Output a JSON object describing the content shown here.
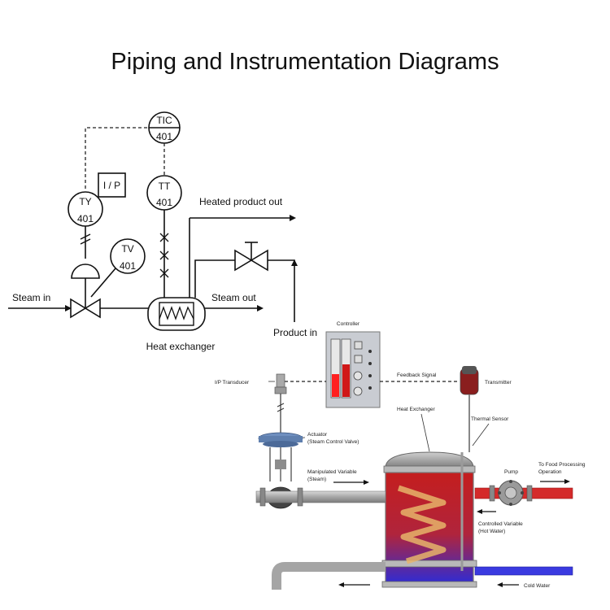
{
  "title": "Piping and Instrumentation Diagrams",
  "pid": {
    "tic_letters": "TIC",
    "tic_number": "401",
    "ty_letters": "TY",
    "ty_number": "401",
    "tt_letters": "TT",
    "tt_number": "401",
    "tv_letters": "TV",
    "tv_number": "401",
    "ip_box": "I / P",
    "steam_in": "Steam in",
    "steam_out": "Steam out",
    "heated_product_out": "Heated product out",
    "product_in": "Product in",
    "heat_exchanger": "Heat exchanger"
  },
  "illustration": {
    "controller": "Controller",
    "ip_transducer": "I/P Transducer",
    "feedback_signal": "Feedback Signal",
    "transmitter": "Transmitter",
    "heat_exchanger": "Heat Exchanger",
    "thermal_sensor": "Thermal Sensor",
    "actuator_line1": "Actuator",
    "actuator_line2": "(Steam Control Valve)",
    "manipulated_line1": "Manipulated Variable",
    "manipulated_line2": "(Steam)",
    "pump": "Pump",
    "food_line1": "To Food Processing",
    "food_line2": "Operation",
    "controlled_line1": "Controlled Variable",
    "controlled_line2": "(Hot Water)",
    "cold_water": "Cold Water",
    "colors": {
      "hot": "#d42a2a",
      "cold": "#3a3ae0",
      "metal": "#9a9a9a",
      "panel": "#c9ccd2",
      "actuator": "#6f8fbf"
    }
  }
}
